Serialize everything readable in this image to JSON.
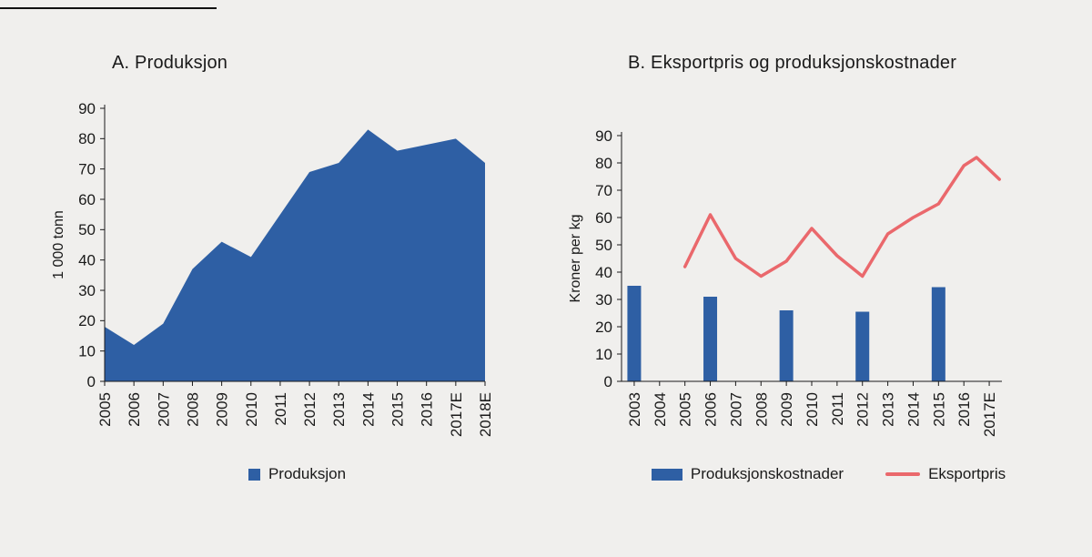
{
  "page": {
    "background": "#f0efed",
    "top_rule_color": "#111111",
    "text_color": "#1a1a1a"
  },
  "chart_data": [
    {
      "id": "A",
      "type": "area",
      "title": "A. Produksjon",
      "ylabel": "1 000 tonn",
      "ylim": [
        0,
        90
      ],
      "ytick_step": 10,
      "grid": false,
      "legend_position": "bottom",
      "categories": [
        "2005",
        "2006",
        "2007",
        "2008",
        "2009",
        "2010",
        "2011",
        "2012",
        "2013",
        "2014",
        "2015",
        "2016",
        "2017E",
        "2018E"
      ],
      "values": [
        18,
        12,
        19,
        37,
        46,
        41,
        55,
        69,
        72,
        83,
        76,
        78,
        80,
        72
      ],
      "series_color": "#2e5fa4",
      "legend": [
        {
          "label": "Produksjon",
          "marker": "square",
          "color": "#2e5fa4"
        }
      ]
    },
    {
      "id": "B",
      "type": "bar+line",
      "title": "B. Eksportpris og produksjonskostnader",
      "ylabel": "Kroner per kg",
      "ylim": [
        0,
        90
      ],
      "ytick_step": 10,
      "grid": false,
      "legend_position": "bottom",
      "categories": [
        "2003",
        "2004",
        "2005",
        "2006",
        "2007",
        "2008",
        "2009",
        "2010",
        "2011",
        "2012",
        "2013",
        "2014",
        "2015",
        "2016",
        "2017E"
      ],
      "bars": {
        "name": "Produksjonskostnader",
        "color": "#2e5fa4",
        "data": [
          [
            "2003",
            35
          ],
          [
            "2006",
            31
          ],
          [
            "2009",
            26
          ],
          [
            "2012",
            25.5
          ],
          [
            "2015",
            34.5
          ]
        ]
      },
      "line": {
        "name": "Eksportpris",
        "color": "#ea686c",
        "points": [
          [
            2005,
            42
          ],
          [
            2006,
            61
          ],
          [
            2007,
            45
          ],
          [
            2008,
            38.5
          ],
          [
            2009,
            44
          ],
          [
            2010,
            56
          ],
          [
            2011,
            46
          ],
          [
            2012,
            38.5
          ],
          [
            2013,
            54
          ],
          [
            2014,
            60
          ],
          [
            2015,
            65
          ],
          [
            2016,
            79
          ],
          [
            2016.5,
            82
          ],
          [
            2017.4,
            74
          ]
        ]
      },
      "legend": [
        {
          "label": "Produksjonskostnader",
          "marker": "bar",
          "color": "#2e5fa4"
        },
        {
          "label": "Eksportpris",
          "marker": "line",
          "color": "#ea686c"
        }
      ]
    }
  ]
}
